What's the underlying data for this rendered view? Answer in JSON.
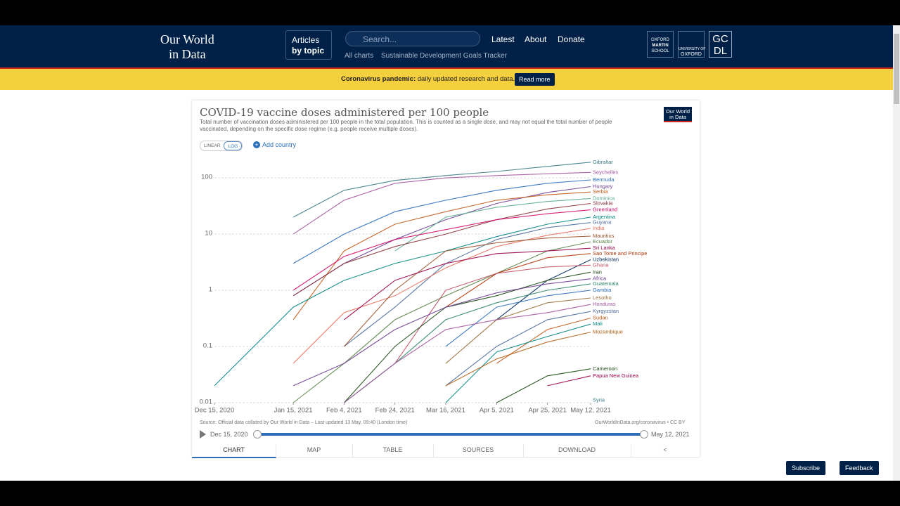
{
  "header": {
    "logo": [
      "Our World",
      "in Data"
    ],
    "articles": [
      "Articles",
      "by topic"
    ],
    "search": "Search...",
    "nav": [
      "Latest",
      "About",
      "Donate"
    ],
    "subnav": [
      "All charts",
      "Sustainable Development Goals Tracker"
    ],
    "partner_oxford_martin": [
      "OXFORD",
      "MARTIN",
      "SCHOOL"
    ],
    "partner_oxford": [
      "UNIVERSITY OF",
      "OXFORD"
    ],
    "partner_gcdl": [
      "GC",
      "DL"
    ]
  },
  "banner": {
    "bold": "Coronavirus pandemic:",
    "text": "daily updated research and data.",
    "button": "Read more"
  },
  "card": {
    "logo": [
      "Our World",
      "in Data"
    ],
    "scale_buttons": [
      "LINEAR",
      "LOG"
    ],
    "add_country": "Add country",
    "source": "Source: Official data collated by Our World in Data – Last updated 13 May, 09:40 (London time)",
    "license": "OurWorldInData.org/coronavirus • CC BY",
    "timeline": {
      "start": "Dec 15, 2020",
      "end": "May 12, 2021"
    },
    "tabs": [
      "CHART",
      "MAP",
      "TABLE",
      "SOURCES",
      "DOWNLOAD"
    ]
  },
  "chart_data": {
    "type": "line",
    "title": "COVID-19 vaccine doses administered per 100 people",
    "subtitle": "Total number of vaccination doses administered per 100 people in the total population. This is counted as a single dose, and may not equal the total number of people vaccinated, depending on the specific dose regime (e.g. people receive multiple doses).",
    "y_scale": "log",
    "grid": true,
    "x": [
      "2020-12-15",
      "2021-01-15",
      "2021-02-04",
      "2021-02-24",
      "2021-03-16",
      "2021-04-05",
      "2021-04-25",
      "2021-05-12"
    ],
    "xlim": [
      "2020-12-15",
      "2021-05-12"
    ],
    "xticks": [
      {
        "value": "2020-12-15",
        "label": "Dec 15, 2020"
      },
      {
        "value": "2021-01-15",
        "label": "Jan 15, 2021"
      },
      {
        "value": "2021-02-04",
        "label": "Feb 4, 2021"
      },
      {
        "value": "2021-02-24",
        "label": "Feb 24, 2021"
      },
      {
        "value": "2021-03-16",
        "label": "Mar 16, 2021"
      },
      {
        "value": "2021-04-05",
        "label": "Apr 5, 2021"
      },
      {
        "value": "2021-04-25",
        "label": "Apr 25, 2021"
      },
      {
        "value": "2021-05-12",
        "label": "May 12, 2021"
      }
    ],
    "ylim": [
      0.01,
      200
    ],
    "yticks": [
      0.01,
      0.1,
      1,
      10,
      100
    ],
    "series": [
      {
        "name": "Gibraltar",
        "color": "#3a7a84",
        "values": [
          null,
          20,
          60,
          90,
          110,
          130,
          160,
          190
        ]
      },
      {
        "name": "Seychelles",
        "color": "#a2559c",
        "values": [
          null,
          10,
          40,
          80,
          100,
          110,
          118,
          125
        ]
      },
      {
        "name": "Bermuda",
        "color": "#286bbb",
        "values": [
          null,
          3,
          10,
          25,
          40,
          60,
          80,
          92
        ]
      },
      {
        "name": "Hungary",
        "color": "#6d3e91",
        "values": [
          null,
          0.8,
          3,
          8,
          18,
          35,
          55,
          70
        ]
      },
      {
        "name": "Serbia",
        "color": "#c05917",
        "values": [
          null,
          0.3,
          5,
          15,
          25,
          40,
          50,
          56
        ]
      },
      {
        "name": "Dominica",
        "color": "#58ac8c",
        "values": [
          null,
          null,
          null,
          5,
          20,
          30,
          38,
          43
        ]
      },
      {
        "name": "Slovakia",
        "color": "#883039",
        "values": [
          null,
          0.8,
          3,
          6,
          10,
          18,
          28,
          35
        ]
      },
      {
        "name": "Greenland",
        "color": "#cf0a66",
        "values": [
          null,
          1,
          4,
          8,
          12,
          18,
          23,
          27
        ]
      },
      {
        "name": "Argentina",
        "color": "#00847e",
        "values": [
          0.02,
          0.5,
          1.5,
          3,
          5,
          9,
          15,
          20
        ]
      },
      {
        "name": "Guyana",
        "color": "#4c6a9c",
        "values": [
          null,
          null,
          0.1,
          0.5,
          3,
          8,
          13,
          16
        ]
      },
      {
        "name": "India",
        "color": "#e56e5a",
        "values": [
          null,
          0.05,
          0.4,
          0.8,
          2.5,
          6,
          9.5,
          12.6
        ]
      },
      {
        "name": "Mauritius",
        "color": "#9a5129",
        "values": [
          null,
          null,
          0.1,
          1,
          5,
          7,
          8.5,
          9.2
        ]
      },
      {
        "name": "Ecuador",
        "color": "#578145",
        "values": [
          null,
          0.01,
          0.05,
          0.3,
          0.8,
          2,
          5,
          7.3
        ]
      },
      {
        "name": "Sri Lanka",
        "color": "#970046",
        "values": [
          null,
          null,
          0.3,
          1.5,
          3,
          4.5,
          5,
          5.6
        ]
      },
      {
        "name": "Sao Tome and Principe",
        "color": "#b13507",
        "values": [
          null,
          null,
          null,
          null,
          0.5,
          2,
          3.8,
          4.5
        ]
      },
      {
        "name": "Uzbekistan",
        "color": "#00295b",
        "values": [
          null,
          null,
          null,
          null,
          null,
          0.3,
          1.5,
          3.5
        ]
      },
      {
        "name": "Ghana",
        "color": "#c15065",
        "values": [
          null,
          null,
          null,
          0.05,
          1,
          2,
          2.6,
          2.8
        ]
      },
      {
        "name": "Iran",
        "color": "#18470f",
        "values": [
          null,
          null,
          0.01,
          0.1,
          0.5,
          0.8,
          1.5,
          2.1
        ]
      },
      {
        "name": "Africa",
        "color": "#6d3e91",
        "values": [
          null,
          0.02,
          0.05,
          0.2,
          0.5,
          0.9,
          1.3,
          1.6
        ]
      },
      {
        "name": "Guatemala",
        "color": "#2c8465",
        "values": [
          null,
          null,
          0.01,
          0.05,
          0.3,
          0.6,
          1,
          1.3
        ]
      },
      {
        "name": "Gambia",
        "color": "#286bbb",
        "values": [
          null,
          null,
          null,
          null,
          0.1,
          0.5,
          0.8,
          1
        ]
      },
      {
        "name": "Lesotho",
        "color": "#996d39",
        "values": [
          null,
          null,
          null,
          null,
          0.05,
          0.3,
          0.6,
          0.73
        ]
      },
      {
        "name": "Honduras",
        "color": "#a2559c",
        "values": [
          null,
          null,
          0.01,
          0.05,
          0.2,
          0.3,
          0.4,
          0.56
        ]
      },
      {
        "name": "Kyrgyzstan",
        "color": "#4c6a9c",
        "values": [
          null,
          null,
          null,
          null,
          0.02,
          0.1,
          0.3,
          0.42
        ]
      },
      {
        "name": "Sudan",
        "color": "#c05917",
        "values": [
          null,
          null,
          null,
          null,
          null,
          0.05,
          0.2,
          0.32
        ]
      },
      {
        "name": "Mali",
        "color": "#00847e",
        "values": [
          null,
          null,
          null,
          null,
          0.01,
          0.08,
          0.15,
          0.25
        ]
      },
      {
        "name": "Mozambique",
        "color": "#b16214",
        "values": [
          null,
          null,
          null,
          null,
          0.02,
          0.06,
          0.12,
          0.18
        ]
      },
      {
        "name": "Cameroon",
        "color": "#18470f",
        "values": [
          null,
          null,
          null,
          null,
          null,
          0.01,
          0.03,
          0.04
        ]
      },
      {
        "name": "Papua New Guinea",
        "color": "#970046",
        "values": [
          null,
          null,
          null,
          null,
          null,
          null,
          0.02,
          0.03
        ]
      },
      {
        "name": "Syria",
        "color": "#3a7a84",
        "values": [
          null,
          null,
          null,
          null,
          null,
          null,
          null,
          0.011
        ]
      }
    ]
  },
  "footer_buttons": [
    "Subscribe",
    "Feedback"
  ]
}
